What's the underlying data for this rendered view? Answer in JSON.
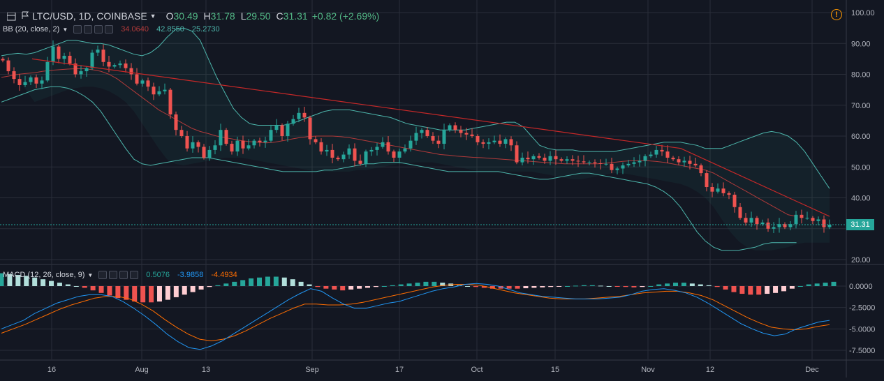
{
  "header": {
    "symbol": "LTC/USD, 1D, COINBASE",
    "o_label": "O",
    "o_val": "30.49",
    "h_label": "H",
    "h_val": "31.78",
    "l_label": "L",
    "l_val": "29.50",
    "c_label": "C",
    "c_val": "31.31",
    "change": "+0.82 (+2.69%)",
    "warning_glyph": "!"
  },
  "bb_legend": {
    "name": "BB (20, close, 2)",
    "basis": "34.0640",
    "upper": "42.8550",
    "lower": "25.2730",
    "basis_color": "#b23a3a",
    "upper_color": "#4db6ac",
    "lower_color": "#4db6ac"
  },
  "macd_legend": {
    "name": "MACD (12, 26, close, 9)",
    "hist": "0.5076",
    "macd": "-3.9858",
    "signal": "-4.4934",
    "hist_color": "#26a69a",
    "macd_color": "#2196f3",
    "signal_color": "#ff6d00"
  },
  "price_axis_labels": [
    "100.00",
    "90.00",
    "80.00",
    "70.00",
    "60.00",
    "50.00",
    "40.00",
    "20.00"
  ],
  "macd_axis_labels": [
    "0.0000",
    "-2.5000",
    "-5.0000",
    "-7.5000"
  ],
  "time_labels": [
    "16",
    "Aug",
    "13",
    "Sep",
    "17",
    "Oct",
    "15",
    "Nov",
    "12",
    "Dec"
  ],
  "last_price_tag": "31.31",
  "colors": {
    "up": "#26a69a",
    "down": "#ef5350",
    "bg": "#131722",
    "grid": "#2a2e39",
    "trend": "#c62828"
  },
  "icons": [
    "menu-icon",
    "settings-icon",
    "hide-icon",
    "more-icon",
    "close-icon",
    "warning-icon"
  ],
  "chart_data": {
    "type": "candlestick",
    "title": "LTC/USD, 1D, COINBASE",
    "ylim": [
      20,
      100
    ],
    "closes": [
      84.5,
      81.0,
      78.5,
      76.5,
      77.5,
      79.0,
      77.0,
      78.0,
      84.0,
      89.0,
      85.0,
      86.0,
      83.5,
      80.0,
      81.0,
      82.0,
      87.0,
      88.0,
      84.0,
      82.5,
      83.0,
      83.5,
      82.0,
      80.0,
      77.0,
      78.0,
      76.0,
      73.5,
      74.5,
      75.0,
      67.0,
      62.0,
      60.0,
      56.0,
      58.0,
      56.5,
      53.0,
      55.5,
      57.0,
      62.0,
      57.5,
      55.0,
      58.5,
      56.0,
      57.0,
      58.5,
      58.0,
      58.5,
      62.0,
      63.5,
      60.0,
      64.0,
      65.5,
      67.5,
      66.0,
      59.0,
      58.0,
      55.0,
      55.5,
      53.0,
      52.5,
      54.0,
      56.0,
      52.0,
      51.0,
      55.0,
      55.5,
      56.5,
      58.0,
      55.0,
      53.0,
      55.0,
      56.0,
      58.5,
      61.0,
      62.0,
      60.0,
      58.5,
      57.5,
      62.0,
      63.5,
      62.0,
      61.0,
      60.5,
      60.0,
      58.0,
      57.5,
      58.0,
      58.5,
      57.5,
      59.0,
      57.0,
      51.5,
      53.0,
      52.5,
      53.5,
      53.0,
      52.0,
      53.5,
      52.5,
      52.0,
      52.5,
      52.0,
      51.8,
      51.5,
      51.5,
      51.2,
      51.0,
      51.0,
      49.0,
      49.5,
      50.5,
      51.0,
      51.5,
      52.0,
      53.5,
      54.0,
      55.5,
      55.0,
      53.0,
      52.5,
      51.5,
      52.0,
      51.0,
      50.5,
      48.0,
      43.5,
      42.0,
      43.0,
      41.5,
      41.0,
      37.0,
      33.5,
      32.0,
      33.5,
      31.5,
      32.0,
      30.0,
      30.5,
      31.5,
      30.5,
      31.5,
      34.5,
      33.5,
      33.5,
      32.5,
      33.0,
      30.49,
      31.31
    ],
    "bb_upper": [
      86,
      86.5,
      86.8,
      86.5,
      87,
      88,
      89,
      90,
      91,
      91,
      90.5,
      90,
      90,
      89.5,
      88.5,
      87.5,
      86.5,
      86,
      87,
      89,
      92,
      94.5,
      95,
      94,
      91,
      85,
      79,
      74,
      69,
      66,
      64,
      63.5,
      63.5,
      63.5,
      63.5,
      64,
      65,
      66,
      67,
      68,
      68.5,
      68.5,
      68.5,
      68,
      67.5,
      67,
      66.5,
      66,
      65,
      64,
      63.5,
      63,
      62.5,
      62,
      62,
      62,
      62,
      62.5,
      63,
      63.5,
      64,
      64.5,
      64.5,
      63,
      60,
      57,
      56,
      55.5,
      55.5,
      55.5,
      55,
      55,
      55,
      55,
      55,
      55.5,
      56,
      56.5,
      57,
      57.5,
      58,
      58,
      58,
      57.5,
      57,
      56,
      56,
      56,
      57,
      58,
      59,
      60,
      61,
      61.5,
      61,
      60,
      58,
      55,
      51,
      47,
      43
    ],
    "bb_basis": [
      79,
      79.5,
      80,
      80.3,
      80.5,
      81,
      81.3,
      81.5,
      81.7,
      81.8,
      81.8,
      81.5,
      81,
      80,
      78.5,
      76.5,
      74.5,
      72.5,
      70.5,
      68.5,
      67,
      65.5,
      64,
      62.5,
      61.5,
      60.8,
      60,
      59.5,
      59,
      58.5,
      58.2,
      58,
      57.8,
      58,
      58.5,
      59,
      59.5,
      59.8,
      60,
      60,
      60,
      59.8,
      59.5,
      59,
      58.5,
      58,
      57.5,
      57,
      56.5,
      56,
      55.5,
      55,
      54.5,
      54,
      53.8,
      53.5,
      53.3,
      53.1,
      53,
      52.8,
      52.6,
      52.4,
      52.2,
      52,
      51.8,
      51.6,
      51.4,
      51.2,
      51,
      51,
      51,
      51,
      51,
      51.2,
      51.5,
      51.8,
      52,
      52,
      52,
      51.8,
      51.5,
      51,
      50.5,
      50,
      49.5,
      49,
      48,
      46.5,
      45,
      43.5,
      42,
      40.5,
      39,
      37.5,
      36,
      34.5,
      34
    ],
    "bb_lower": [
      71,
      72,
      73,
      74,
      75,
      75.5,
      76,
      76,
      75.5,
      74.5,
      73,
      71,
      68,
      64,
      60,
      56,
      52.5,
      51,
      50.5,
      51,
      51.5,
      52,
      52.5,
      53,
      53,
      53,
      52.5,
      52,
      51.5,
      51,
      50.5,
      50,
      49.5,
      49,
      48.5,
      48.5,
      48.5,
      48.5,
      48.5,
      49,
      49,
      49.5,
      50,
      50.5,
      51,
      51,
      51.5,
      51.5,
      51.5,
      51,
      50.5,
      50,
      49.5,
      49,
      48.5,
      48.5,
      48.5,
      48.5,
      48.5,
      48.5,
      48.5,
      48,
      47.5,
      47,
      46.5,
      46,
      46,
      46.5,
      47,
      47.5,
      48,
      48,
      47.5,
      47,
      46.5,
      46,
      45.5,
      45,
      44.5,
      43.5,
      42,
      40,
      37,
      33,
      29,
      26,
      24,
      23,
      23,
      23,
      23.5,
      24,
      25,
      25.5,
      25.5,
      25.5,
      25.5
    ],
    "trendline": [
      [
        46,
        85
      ],
      [
        975,
        56
      ],
      [
        1188,
        34
      ]
    ],
    "macd_hist": [
      1.5,
      1.4,
      1.3,
      1.2,
      1.0,
      0.8,
      0.6,
      0.4,
      0.2,
      0,
      -0.2,
      -0.5,
      -0.8,
      -1.1,
      -1.4,
      -1.6,
      -1.8,
      -1.9,
      -1.9,
      -1.8,
      -1.6,
      -1.3,
      -1.0,
      -0.7,
      -0.4,
      -0.1,
      0.1,
      0.3,
      0.5,
      0.7,
      0.9,
      1.0,
      1.1,
      1.1,
      1.0,
      0.8,
      0.5,
      0.2,
      -0.1,
      -0.3,
      -0.4,
      -0.5,
      -0.4,
      -0.3,
      -0.2,
      -0.1,
      0,
      0.1,
      0.2,
      0.3,
      0.4,
      0.5,
      0.5,
      0.4,
      0.3,
      0.1,
      0,
      -0.1,
      -0.2,
      -0.3,
      -0.3,
      -0.3,
      -0.3,
      -0.25,
      -0.2,
      -0.15,
      -0.1,
      -0.05,
      0,
      0.05,
      0.1,
      0.1,
      0.05,
      0,
      -0.05,
      -0.1,
      -0.15,
      -0.1,
      0,
      0.2,
      0.3,
      0.4,
      0.4,
      0.3,
      0.2,
      0.1,
      -0.1,
      -0.4,
      -0.7,
      -0.9,
      -1.0,
      -1.0,
      -0.9,
      -0.8,
      -0.6,
      -0.3,
      0,
      0.2,
      0.3,
      0.4,
      0.5
    ],
    "macd_line": [
      -5,
      -4.5,
      -4.0,
      -3.2,
      -2.6,
      -2.0,
      -1.6,
      -1.2,
      -1.0,
      -1.0,
      -1.2,
      -1.8,
      -2.6,
      -3.5,
      -4.5,
      -5.6,
      -6.5,
      -7.2,
      -7.4,
      -7.0,
      -6.4,
      -5.6,
      -4.8,
      -4.0,
      -3.2,
      -2.4,
      -1.6,
      -0.9,
      -0.3,
      -0.6,
      -1.4,
      -2.1,
      -2.6,
      -2.6,
      -2.3,
      -2.0,
      -1.8,
      -1.4,
      -1.0,
      -0.6,
      -0.3,
      -0.1,
      0.2,
      0.3,
      0.2,
      0,
      -0.4,
      -0.8,
      -1.0,
      -1.2,
      -1.3,
      -1.4,
      -1.5,
      -1.5,
      -1.5,
      -1.4,
      -1.3,
      -1.0,
      -0.6,
      -0.4,
      -0.3,
      -0.5,
      -0.8,
      -1.3,
      -2.0,
      -2.8,
      -3.6,
      -4.4,
      -5.0,
      -5.5,
      -5.8,
      -5.6,
      -5.0,
      -4.6,
      -4.2,
      -4.0
    ],
    "signal_line": [
      -5.5,
      -5.0,
      -4.5,
      -3.9,
      -3.3,
      -2.7,
      -2.2,
      -1.8,
      -1.4,
      -1.2,
      -1.2,
      -1.5,
      -2.1,
      -2.9,
      -3.9,
      -4.8,
      -5.6,
      -6.2,
      -6.4,
      -6.2,
      -5.8,
      -5.2,
      -4.5,
      -3.8,
      -3.2,
      -2.6,
      -2.1,
      -2.1,
      -2.2,
      -2.2,
      -2.1,
      -1.9,
      -1.6,
      -1.3,
      -1.0,
      -0.7,
      -0.4,
      -0.1,
      0.1,
      0.2,
      0.2,
      0.1,
      -0.2,
      -0.5,
      -0.8,
      -1.0,
      -1.2,
      -1.4,
      -1.5,
      -1.5,
      -1.5,
      -1.4,
      -1.3,
      -1.2,
      -1.0,
      -0.8,
      -0.7,
      -0.6,
      -0.6,
      -0.8,
      -1.1,
      -1.6,
      -2.3,
      -3.0,
      -3.7,
      -4.3,
      -4.8,
      -5.0,
      -5.1,
      -5.0,
      -4.7,
      -4.5
    ],
    "macd_ylim": [
      -8.5,
      2
    ],
    "time_axis_labels": [
      "16",
      "Aug",
      "13",
      "Sep",
      "17",
      "Oct",
      "15",
      "Nov",
      "12",
      "Dec"
    ]
  }
}
